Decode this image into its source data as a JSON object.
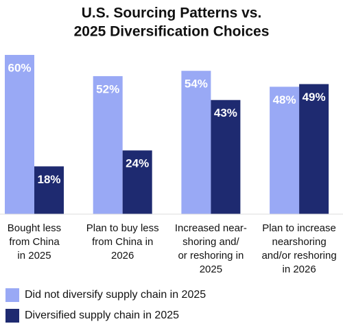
{
  "chart_data": {
    "type": "bar",
    "title": [
      "U.S. Sourcing Patterns vs.",
      "2025 Diversification Choices"
    ],
    "categories": [
      [
        "Bought less",
        "from China",
        "in 2025"
      ],
      [
        "Plan to buy less",
        "from China in",
        "2026"
      ],
      [
        "Increased near-",
        "shoring and/",
        "or reshoring in",
        "2025"
      ],
      [
        "Plan to increase",
        "nearshoring",
        "and/or reshoring",
        "in 2026"
      ]
    ],
    "series": [
      {
        "name": "Did not diversify supply chain in 2025",
        "color": "#99a9f5",
        "values": [
          60,
          52,
          54,
          48
        ],
        "value_labels": [
          "60%",
          "52%",
          "54%",
          "48%"
        ]
      },
      {
        "name": "Diversified supply chain in 2025",
        "color": "#1e2a70",
        "values": [
          18,
          24,
          43,
          49
        ],
        "value_labels": [
          "18%",
          "24%",
          "43%",
          "49%"
        ]
      }
    ],
    "ylim": [
      0,
      60
    ]
  }
}
